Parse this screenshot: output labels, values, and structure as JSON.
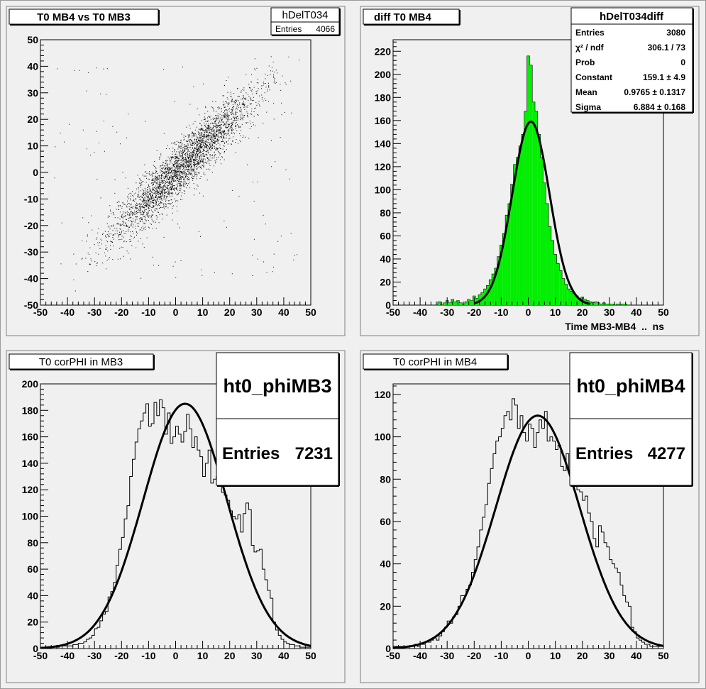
{
  "chart_data": [
    {
      "type": "scatter",
      "title": "T0 MB4 vs T0 MB3",
      "xlabel": "",
      "ylabel": "",
      "xlim": [
        -50,
        50
      ],
      "ylim": [
        -50,
        50
      ],
      "xticks": [
        "-50",
        "-40",
        "-30",
        "-20",
        "-10",
        "0",
        "10",
        "20",
        "30",
        "40",
        "50"
      ],
      "yticks": [
        "-50",
        "-40",
        "-30",
        "-20",
        "-10",
        "0",
        "10",
        "20",
        "30",
        "40",
        "50"
      ],
      "stats": {
        "name": "hDelT034",
        "rows": [
          {
            "label": "Entries",
            "value": "4066"
          }
        ]
      },
      "model": {
        "entries": 4066,
        "x_mean": 3,
        "x_sigma": 13,
        "slope": 0.97,
        "intercept": 0,
        "residual_sigma": 5,
        "outlier_fraction": 0.04
      }
    },
    {
      "type": "bar",
      "title": "diff T0 MB4",
      "xlabel": "Time MB3-MB4  ..  ns",
      "ylabel": "",
      "xlim": [
        -50,
        50
      ],
      "ylim": [
        0,
        230
      ],
      "fill_color": "#00ee00",
      "xticks": [
        "-50",
        "-40",
        "-30",
        "-20",
        "-10",
        "0",
        "10",
        "20",
        "30",
        "40",
        "50"
      ],
      "yticks": [
        "0",
        "20",
        "40",
        "60",
        "80",
        "100",
        "120",
        "140",
        "160",
        "180",
        "200",
        "220"
      ],
      "bin_width": 1,
      "x": [
        -33,
        -32,
        -31,
        -30,
        -29,
        -28,
        -27,
        -26,
        -25,
        -24,
        -23,
        -22,
        -21,
        -20,
        -19,
        -18,
        -17,
        -16,
        -15,
        -14,
        -13,
        -12,
        -11,
        -10,
        -9,
        -8,
        -7,
        -6,
        -5,
        -4,
        -3,
        -2,
        -1,
        0,
        1,
        2,
        3,
        4,
        5,
        6,
        7,
        8,
        9,
        10,
        11,
        12,
        13,
        14,
        15,
        16,
        17,
        18,
        19,
        20,
        21,
        22,
        23,
        24,
        25,
        26,
        27,
        28,
        29,
        30,
        31,
        32,
        33,
        34,
        35,
        36
      ],
      "values": [
        3,
        0,
        2,
        4,
        2,
        5,
        3,
        4,
        2,
        1,
        3,
        5,
        4,
        8,
        6,
        9,
        11,
        14,
        17,
        22,
        27,
        32,
        42,
        52,
        62,
        78,
        88,
        105,
        122,
        128,
        138,
        148,
        168,
        216,
        208,
        176,
        168,
        148,
        128,
        106,
        88,
        68,
        56,
        44,
        36,
        30,
        23,
        18,
        14,
        12,
        10,
        8,
        6,
        7,
        5,
        4,
        3,
        2,
        3,
        2,
        1,
        2,
        1,
        1,
        1,
        0,
        1,
        0,
        1,
        1
      ],
      "series": [
        {
          "name": "fit",
          "function": "gaus",
          "constant": 159.1,
          "mean": 0.9765,
          "sigma": 6.884
        }
      ],
      "stats": {
        "name": "hDelT034diff",
        "rows": [
          {
            "label": "Entries",
            "value": "3080"
          },
          {
            "label": "χ² / ndf",
            "value": "306.1 / 73"
          },
          {
            "label": "Prob",
            "value": "0"
          },
          {
            "label": "Constant",
            "value": "159.1 ± 4.9"
          },
          {
            "label": "Mean",
            "value": "0.9765 ± 0.1317"
          },
          {
            "label": "Sigma",
            "value": "6.884 ± 0.168"
          }
        ]
      }
    },
    {
      "type": "line",
      "title": "T0 corPHI in MB3",
      "xlabel": "",
      "ylabel": "",
      "xlim": [
        -50,
        50
      ],
      "ylim": [
        0,
        200
      ],
      "xticks": [
        "-50",
        "-40",
        "-30",
        "-20",
        "-10",
        "0",
        "10",
        "20",
        "30",
        "40",
        "50"
      ],
      "yticks": [
        "0",
        "20",
        "40",
        "60",
        "80",
        "100",
        "120",
        "140",
        "160",
        "180",
        "200"
      ],
      "bin_width": 1,
      "x": [
        -50,
        -49,
        -48,
        -47,
        -46,
        -45,
        -44,
        -43,
        -42,
        -41,
        -40,
        -39,
        -38,
        -37,
        -36,
        -35,
        -34,
        -33,
        -32,
        -31,
        -30,
        -29,
        -28,
        -27,
        -26,
        -25,
        -24,
        -23,
        -22,
        -21,
        -20,
        -19,
        -18,
        -17,
        -16,
        -15,
        -14,
        -13,
        -12,
        -11,
        -10,
        -9,
        -8,
        -7,
        -6,
        -5,
        -4,
        -3,
        -2,
        -1,
        0,
        1,
        2,
        3,
        4,
        5,
        6,
        7,
        8,
        9,
        10,
        11,
        12,
        13,
        14,
        15,
        16,
        17,
        18,
        19,
        20,
        21,
        22,
        23,
        24,
        25,
        26,
        27,
        28,
        29,
        30,
        31,
        32,
        33,
        34,
        35,
        36,
        37,
        38,
        39,
        40,
        41,
        42,
        43,
        44,
        45,
        46,
        47,
        48,
        49
      ],
      "values": [
        1,
        1,
        1,
        1,
        1,
        1,
        1,
        2,
        2,
        2,
        2,
        2,
        3,
        3,
        4,
        4,
        5,
        7,
        8,
        10,
        15,
        16,
        21,
        26,
        28,
        39,
        43,
        50,
        63,
        75,
        84,
        98,
        108,
        130,
        143,
        156,
        166,
        172,
        178,
        185,
        168,
        170,
        186,
        176,
        188,
        182,
        162,
        178,
        155,
        160,
        168,
        162,
        156,
        164,
        177,
        166,
        152,
        160,
        150,
        145,
        130,
        140,
        150,
        125,
        128,
        130,
        130,
        118,
        116,
        112,
        104,
        100,
        98,
        101,
        88,
        102,
        110,
        105,
        78,
        73,
        74,
        75,
        60,
        52,
        44,
        38,
        20,
        14,
        10,
        7,
        5,
        4,
        3,
        3,
        2,
        2,
        1,
        1,
        1,
        1
      ],
      "series": [
        {
          "name": "fit",
          "function": "gaus",
          "constant": 185,
          "mean": 3.5,
          "sigma": 15.5
        }
      ],
      "stats": {
        "name": "ht0_phiMB3",
        "rows": [
          {
            "label": "Entries",
            "value": "7231"
          }
        ]
      }
    },
    {
      "type": "line",
      "title": "T0 corPHI in MB4",
      "xlabel": "",
      "ylabel": "",
      "xlim": [
        -50,
        50
      ],
      "ylim": [
        0,
        125
      ],
      "xticks": [
        "-50",
        "-40",
        "-30",
        "-20",
        "-10",
        "0",
        "10",
        "20",
        "30",
        "40",
        "50"
      ],
      "yticks": [
        "0",
        "20",
        "40",
        "60",
        "80",
        "100",
        "120"
      ],
      "bin_width": 1,
      "x": [
        -50,
        -49,
        -48,
        -47,
        -46,
        -45,
        -44,
        -43,
        -42,
        -41,
        -40,
        -39,
        -38,
        -37,
        -36,
        -35,
        -34,
        -33,
        -32,
        -31,
        -30,
        -29,
        -28,
        -27,
        -26,
        -25,
        -24,
        -23,
        -22,
        -21,
        -20,
        -19,
        -18,
        -17,
        -16,
        -15,
        -14,
        -13,
        -12,
        -11,
        -10,
        -9,
        -8,
        -7,
        -6,
        -5,
        -4,
        -3,
        -2,
        -1,
        0,
        1,
        2,
        3,
        4,
        5,
        6,
        7,
        8,
        9,
        10,
        11,
        12,
        13,
        14,
        15,
        16,
        17,
        18,
        19,
        20,
        21,
        22,
        23,
        24,
        25,
        26,
        27,
        28,
        29,
        30,
        31,
        32,
        33,
        34,
        35,
        36,
        37,
        38,
        39,
        40,
        41,
        42,
        43,
        44,
        45,
        46,
        47,
        48,
        49
      ],
      "values": [
        1,
        1,
        1,
        1,
        1,
        1,
        1,
        1,
        2,
        1,
        2,
        2,
        3,
        3,
        4,
        5,
        4,
        6,
        8,
        10,
        13,
        12,
        15,
        16,
        20,
        25,
        25,
        28,
        30,
        36,
        42,
        48,
        56,
        62,
        68,
        78,
        85,
        92,
        98,
        100,
        104,
        110,
        112,
        108,
        118,
        115,
        104,
        110,
        102,
        98,
        106,
        104,
        95,
        102,
        108,
        104,
        112,
        98,
        100,
        98,
        94,
        96,
        86,
        84,
        92,
        84,
        80,
        78,
        75,
        74,
        70,
        72,
        64,
        60,
        52,
        48,
        58,
        55,
        50,
        48,
        42,
        40,
        38,
        36,
        30,
        25,
        22,
        20,
        10,
        8,
        5,
        4,
        3,
        2,
        2,
        1,
        1,
        1,
        1,
        1
      ],
      "series": [
        {
          "name": "fit",
          "function": "gaus",
          "constant": 110,
          "mean": 3.5,
          "sigma": 15.5
        }
      ],
      "stats": {
        "name": "ht0_phiMB4",
        "rows": [
          {
            "label": "Entries",
            "value": "4277"
          }
        ]
      }
    }
  ]
}
